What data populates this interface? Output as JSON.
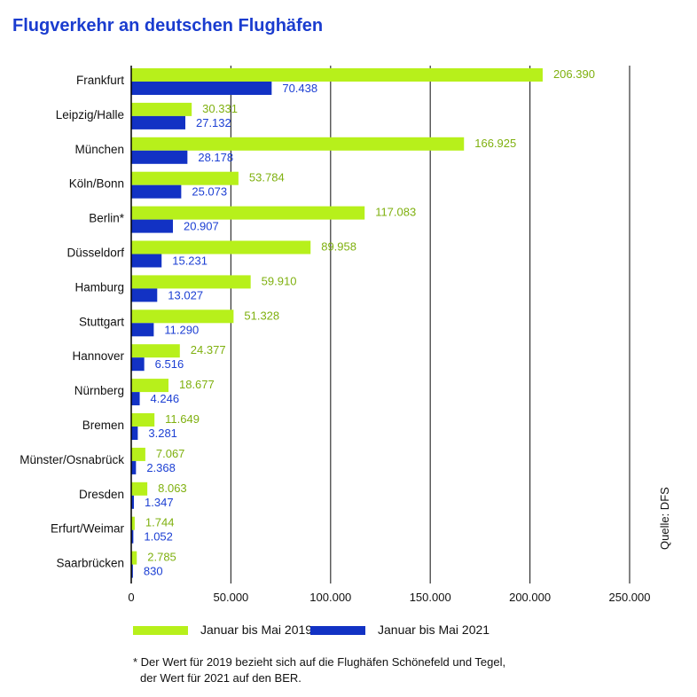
{
  "colors": {
    "series_2019": "#b7f01b",
    "series_2021": "#1232c4",
    "label_2019": "#7fb00f",
    "label_2021": "#1c3fd3",
    "title": "#1a3ccf"
  },
  "chart_data": {
    "type": "bar",
    "orientation": "horizontal",
    "title": "Flugverkehr an deutschen Flughäfen",
    "categories": [
      "Frankfurt",
      "Leipzig/Halle",
      "München",
      "Köln/Bonn",
      "Berlin*",
      "Düsseldorf",
      "Hamburg",
      "Stuttgart",
      "Hannover",
      "Nürnberg",
      "Bremen",
      "Münster/Osnabrück",
      "Dresden",
      "Erfurt/Weimar",
      "Saarbrücken"
    ],
    "series": [
      {
        "name": "Januar bis Mai 2019",
        "values": [
          206390,
          30331,
          166925,
          53784,
          117083,
          89958,
          59910,
          51328,
          24377,
          18677,
          11649,
          7067,
          8063,
          1744,
          2785
        ],
        "labels": [
          "206.390",
          "30.331",
          "166.925",
          "53.784",
          "117.083",
          "89.958",
          "59.910",
          "51.328",
          "24.377",
          "18.677",
          "11.649",
          "7.067",
          "8.063",
          "1.744",
          "2.785"
        ]
      },
      {
        "name": "Januar bis Mai 2021",
        "values": [
          70438,
          27132,
          28178,
          25073,
          20907,
          15231,
          13027,
          11290,
          6516,
          4246,
          3281,
          2368,
          1347,
          1052,
          830
        ],
        "labels": [
          "70.438",
          "27.132",
          "28.178",
          "25.073",
          "20.907",
          "15.231",
          "13.027",
          "11.290",
          "6.516",
          "4.246",
          "3.281",
          "2.368",
          "1.347",
          "1.052",
          "830"
        ]
      }
    ],
    "xlim": [
      0,
      250000
    ],
    "xticks": [
      0,
      50000,
      100000,
      150000,
      200000,
      250000
    ],
    "xtick_labels": [
      "0",
      "50.000",
      "100.000",
      "150.000",
      "200.000",
      "250.000"
    ],
    "grid": "vertical",
    "legend": "bottom"
  },
  "footnote": {
    "line1": "* Der Wert für 2019 bezieht sich auf die Flughäfen Schönefeld und Tegel,",
    "line2": "der Wert für 2021 auf den BER."
  },
  "source": "Quelle: DFS"
}
